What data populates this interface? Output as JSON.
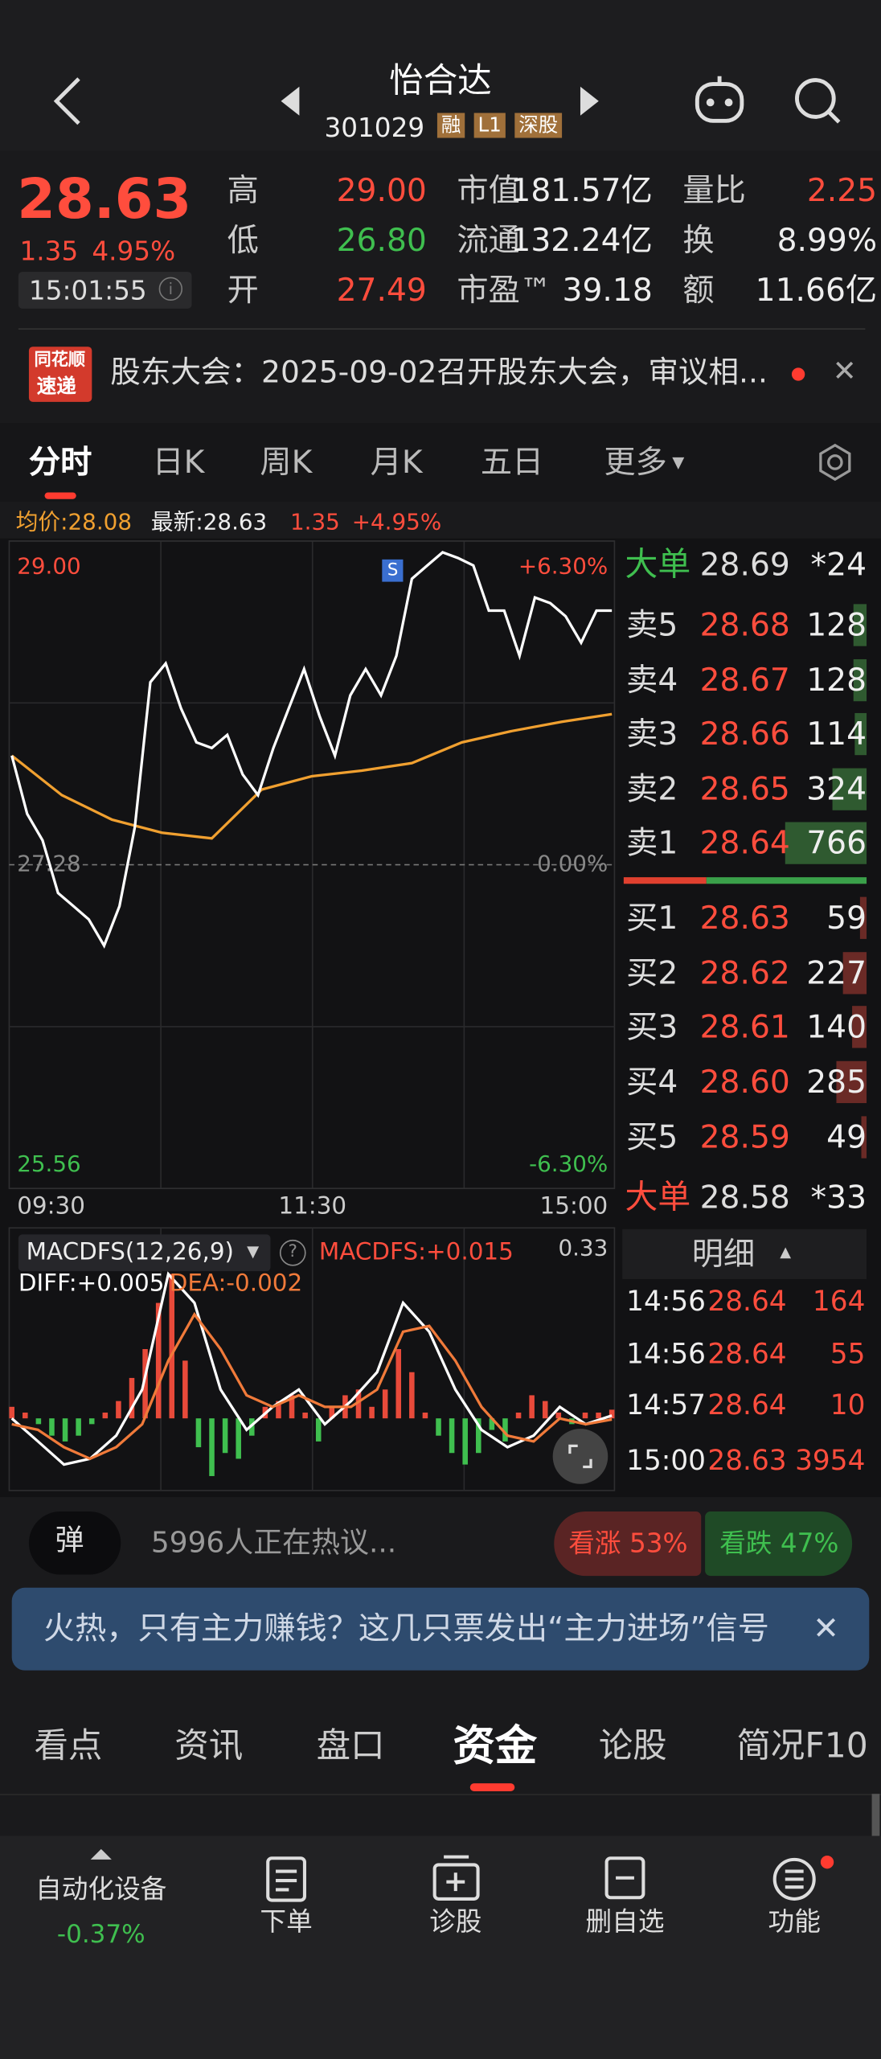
{
  "header": {
    "title": "怡合达",
    "code": "301029",
    "tags": [
      "融",
      "L1",
      "深股"
    ]
  },
  "quote": {
    "price": "28.63",
    "change": "1.35",
    "percent": "4.95%",
    "time": "15:01:55",
    "stats": [
      [
        {
          "label": "高",
          "value": "29.00"
        },
        {
          "label": "市值",
          "value": "181.57亿"
        },
        {
          "label": "量比",
          "value": "2.25"
        }
      ],
      [
        {
          "label": "低",
          "value": "26.80"
        },
        {
          "label": "流通",
          "value": "132.24亿"
        },
        {
          "label": "换",
          "value": "8.99%"
        }
      ],
      [
        {
          "label": "开",
          "value": "27.49"
        },
        {
          "label": "市盈™",
          "value": "39.18"
        },
        {
          "label": "额",
          "value": "11.66亿"
        }
      ]
    ]
  },
  "news": {
    "logo": [
      "同花顺",
      "速递"
    ],
    "text": "股东大会：2025-09-02召开股东大会，审议相..."
  },
  "chart_tabs": [
    "分时",
    "日K",
    "周K",
    "月K",
    "五日",
    "更多"
  ],
  "chart_info": {
    "avg": "均价:28.08",
    "latest": "最新:28.63",
    "change": "1.35",
    "percent": "+4.95%",
    "marker": "S"
  },
  "chart_data": [
    {
      "type": "line",
      "xticks": [
        "09:30",
        "11:30",
        "15:00"
      ],
      "ylim": [
        25.56,
        29.0
      ],
      "yticks": [
        {
          "value": 29.0,
          "label": "29.00"
        },
        27.28,
        25.56
      ],
      "y2lim": [
        -6.3,
        6.3
      ],
      "y2ticks": [
        {
          "value": 6.3,
          "label": "+6.30%"
        },
        {
          "value": 0,
          "label": "0.00%"
        },
        {
          "value": -6.3,
          "label": "-6.30%"
        }
      ],
      "grid": true,
      "series": [
        {
          "name": "最新",
          "color": "#ffffff",
          "values": [
            27.86,
            27.55,
            27.41,
            27.13,
            27.06,
            26.99,
            26.85,
            27.06,
            27.48,
            28.25,
            28.35,
            28.11,
            27.93,
            27.9,
            27.97,
            27.76,
            27.65,
            27.9,
            28.11,
            28.32,
            28.07,
            27.86,
            28.18,
            28.32,
            28.18,
            28.39,
            28.8,
            28.87,
            28.94,
            28.91,
            28.87,
            28.63,
            28.63,
            28.39,
            28.7,
            28.67,
            28.6,
            28.46,
            28.63,
            28.63
          ]
        },
        {
          "name": "均价",
          "color": "#f0a030",
          "values": [
            27.86,
            27.65,
            27.52,
            27.45,
            27.42,
            27.68,
            27.75,
            27.78,
            27.82,
            27.93,
            27.99,
            28.04,
            28.08
          ]
        }
      ]
    },
    {
      "type": "macd",
      "title": "MACDFS(12,26,9)",
      "label": "MACDFS:+0.015",
      "diff_label": "DIFF:+0.005",
      "dea_label": "DEA:-0.002",
      "ylim": [
        -0.125,
        0.33
      ],
      "yticks": [
        0.33
      ],
      "series": [
        {
          "name": "MACDFS",
          "color": "#e84a3a",
          "values": [
            0.02,
            0.01,
            -0.01,
            -0.03,
            -0.04,
            -0.03,
            -0.01,
            0.01,
            0.03,
            0.07,
            0.12,
            0.2,
            0.25,
            0.1,
            -0.05,
            -0.1,
            -0.06,
            -0.07,
            -0.03,
            0.02,
            0.03,
            0.04,
            0.01,
            -0.04,
            0.02,
            0.04,
            0.05,
            0.02,
            0.05,
            0.12,
            0.08,
            0.01,
            -0.03,
            -0.06,
            -0.08,
            -0.06,
            -0.02,
            -0.04,
            0.01,
            0.04,
            0.03,
            0.01,
            -0.01,
            0.01,
            0.01,
            0.015
          ]
        },
        {
          "name": "DIFF",
          "color": "#ffffff",
          "values": [
            0.0,
            -0.04,
            -0.08,
            -0.07,
            -0.03,
            0.05,
            0.25,
            0.2,
            0.05,
            -0.02,
            0.02,
            0.05,
            -0.01,
            0.03,
            0.08,
            0.2,
            0.15,
            0.05,
            -0.02,
            -0.05,
            -0.03,
            0.02,
            -0.01,
            0.005
          ]
        },
        {
          "name": "DEA",
          "color": "#f07a3a",
          "values": [
            -0.01,
            -0.02,
            -0.05,
            -0.07,
            -0.05,
            -0.01,
            0.1,
            0.18,
            0.12,
            0.04,
            0.02,
            0.04,
            0.02,
            0.02,
            0.05,
            0.15,
            0.16,
            0.1,
            0.02,
            -0.03,
            -0.04,
            0.0,
            -0.01,
            -0.002
          ]
        }
      ]
    }
  ],
  "order_book": {
    "big_sell": {
      "label": "大单",
      "price": "28.69",
      "count": "*24"
    },
    "asks": [
      {
        "label": "卖5",
        "price": "28.68",
        "volume": 128
      },
      {
        "label": "卖4",
        "price": "28.67",
        "volume": 128
      },
      {
        "label": "卖3",
        "price": "28.66",
        "volume": 114
      },
      {
        "label": "卖2",
        "price": "28.65",
        "volume": 324
      },
      {
        "label": "卖1",
        "price": "28.64",
        "volume": 766
      }
    ],
    "bids": [
      {
        "label": "买1",
        "price": "28.63",
        "volume": 59
      },
      {
        "label": "买2",
        "price": "28.62",
        "volume": 227
      },
      {
        "label": "买3",
        "price": "28.61",
        "volume": 140
      },
      {
        "label": "买4",
        "price": "28.60",
        "volume": 285
      },
      {
        "label": "买5",
        "price": "28.59",
        "volume": 49
      }
    ],
    "big_buy": {
      "label": "大单",
      "price": "28.58",
      "count": "*33"
    },
    "detail": {
      "title": "明细",
      "rows": [
        [
          "14:56",
          "28.64",
          "164"
        ],
        [
          "14:56",
          "28.64",
          "55"
        ],
        [
          "14:57",
          "28.64",
          "10"
        ],
        [
          "15:00",
          "28.63",
          "3954"
        ]
      ]
    }
  },
  "discussion": {
    "button": "弹",
    "text": "5996人正在热议...",
    "bull": "看涨 53%",
    "bear": "看跌 47%"
  },
  "banner": {
    "text": "火热，只有主力赚钱？这几只票发出“主力进场”信号"
  },
  "section_tabs": [
    "看点",
    "资讯",
    "盘口",
    "资金",
    "论股",
    "简况F10"
  ],
  "bottom_nav": {
    "sector": "自动化设备",
    "sector_change": "-0.37%",
    "items": [
      "下单",
      "诊股",
      "删自选",
      "功能"
    ]
  }
}
